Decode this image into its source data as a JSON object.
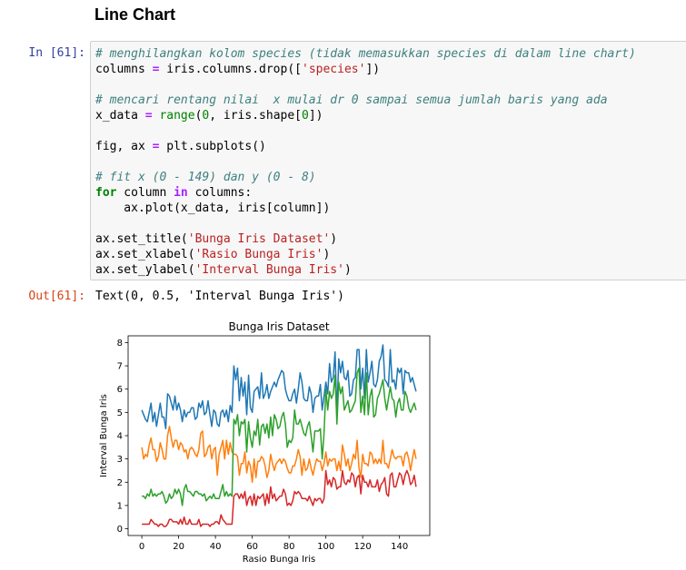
{
  "heading": "Line Chart",
  "cell": {
    "in_prompt": "In [61]:",
    "out_prompt": "Out[61]:",
    "code_lines": [
      [
        {
          "t": "cm",
          "v": "# menghilangkan kolom species (tidak memasukkan species di dalam line chart)"
        }
      ],
      [
        {
          "t": "",
          "v": "columns "
        },
        {
          "t": "op",
          "v": "="
        },
        {
          "t": "",
          "v": " iris.columns.drop(["
        },
        {
          "t": "st",
          "v": "'species'"
        },
        {
          "t": "",
          "v": "])"
        }
      ],
      [],
      [
        {
          "t": "cm",
          "v": "# mencari rentang nilai  x mulai dr 0 sampai semua jumlah baris yang ada"
        }
      ],
      [
        {
          "t": "",
          "v": "x_data "
        },
        {
          "t": "op",
          "v": "="
        },
        {
          "t": "",
          "v": " "
        },
        {
          "t": "nm",
          "v": "range"
        },
        {
          "t": "",
          "v": "("
        },
        {
          "t": "nm",
          "v": "0"
        },
        {
          "t": "",
          "v": ", iris.shape["
        },
        {
          "t": "nm",
          "v": "0"
        },
        {
          "t": "",
          "v": "])"
        }
      ],
      [],
      [
        {
          "t": "",
          "v": "fig, ax "
        },
        {
          "t": "op",
          "v": "="
        },
        {
          "t": "",
          "v": " plt.subplots()"
        }
      ],
      [],
      [
        {
          "t": "cm",
          "v": "# fit x (0 - 149) dan y (0 - 8)"
        }
      ],
      [
        {
          "t": "kw",
          "v": "for"
        },
        {
          "t": "",
          "v": " column "
        },
        {
          "t": "op",
          "v": "in"
        },
        {
          "t": "",
          "v": " columns:"
        }
      ],
      [
        {
          "t": "",
          "v": "    ax.plot(x_data, iris[column])"
        }
      ],
      [],
      [
        {
          "t": "",
          "v": "ax.set_title("
        },
        {
          "t": "st",
          "v": "'Bunga Iris Dataset'"
        },
        {
          "t": "",
          "v": ")"
        }
      ],
      [
        {
          "t": "",
          "v": "ax.set_xlabel("
        },
        {
          "t": "st",
          "v": "'Rasio Bunga Iris'"
        },
        {
          "t": "",
          "v": ")"
        }
      ],
      [
        {
          "t": "",
          "v": "ax.set_ylabel("
        },
        {
          "t": "st",
          "v": "'Interval Bunga Iris'"
        },
        {
          "t": "",
          "v": ")"
        }
      ]
    ],
    "output_text": "Text(0, 0.5, 'Interval Bunga Iris')"
  },
  "chart_data": {
    "type": "line",
    "title": "Bunga Iris Dataset",
    "xlabel": "Rasio Bunga Iris",
    "ylabel": "Interval Bunga Iris",
    "xlim": [
      -7.45,
      156.45
    ],
    "ylim": [
      -0.29,
      8.29
    ],
    "xticks": [
      0,
      20,
      40,
      60,
      80,
      100,
      120,
      140
    ],
    "yticks": [
      0,
      1,
      2,
      3,
      4,
      5,
      6,
      7,
      8
    ],
    "grid": false,
    "series": [
      {
        "color": "#1f77b4",
        "values": [
          5.1,
          4.9,
          4.7,
          4.6,
          5.0,
          5.4,
          4.6,
          5.0,
          4.4,
          4.9,
          5.4,
          4.8,
          4.8,
          4.3,
          5.8,
          5.7,
          5.4,
          5.1,
          5.7,
          5.1,
          5.4,
          5.1,
          4.6,
          5.1,
          4.8,
          5.0,
          5.0,
          5.2,
          5.2,
          4.7,
          4.8,
          5.4,
          5.2,
          5.5,
          4.9,
          5.0,
          5.5,
          4.9,
          4.4,
          5.1,
          5.0,
          4.5,
          4.4,
          5.0,
          5.1,
          4.8,
          5.1,
          4.6,
          5.3,
          5.0,
          7.0,
          6.4,
          6.9,
          5.5,
          6.5,
          5.7,
          6.3,
          4.9,
          6.6,
          5.2,
          5.0,
          5.9,
          6.0,
          6.1,
          5.6,
          6.7,
          5.6,
          5.8,
          6.2,
          5.6,
          5.9,
          6.1,
          6.3,
          6.1,
          6.4,
          6.6,
          6.8,
          6.7,
          6.0,
          5.7,
          5.5,
          5.5,
          5.8,
          6.0,
          5.4,
          6.0,
          6.7,
          6.3,
          5.6,
          5.5,
          5.5,
          6.1,
          5.8,
          5.0,
          5.6,
          5.7,
          5.7,
          6.2,
          5.1,
          5.7,
          6.3,
          5.8,
          7.1,
          6.3,
          6.5,
          7.6,
          4.9,
          7.3,
          6.7,
          7.2,
          6.5,
          6.4,
          6.8,
          5.7,
          5.8,
          6.4,
          6.5,
          7.7,
          7.7,
          6.0,
          6.9,
          5.6,
          7.7,
          6.3,
          6.7,
          7.2,
          6.2,
          6.1,
          6.4,
          7.2,
          7.4,
          7.9,
          6.4,
          6.3,
          6.1,
          7.7,
          6.3,
          6.4,
          6.0,
          6.9,
          6.7,
          6.9,
          5.8,
          6.8,
          6.7,
          6.7,
          6.3,
          6.5,
          6.2,
          5.9
        ]
      },
      {
        "color": "#ff7f0e",
        "values": [
          3.5,
          3.0,
          3.2,
          3.1,
          3.6,
          3.9,
          3.4,
          3.4,
          2.9,
          3.1,
          3.7,
          3.4,
          3.0,
          3.0,
          4.0,
          4.4,
          3.9,
          3.5,
          3.8,
          3.8,
          3.4,
          3.7,
          3.6,
          3.3,
          3.4,
          3.0,
          3.4,
          3.5,
          3.4,
          3.2,
          3.1,
          3.4,
          4.1,
          4.2,
          3.1,
          3.2,
          3.5,
          3.6,
          3.0,
          3.4,
          3.5,
          2.3,
          3.2,
          3.5,
          3.8,
          3.0,
          3.8,
          3.2,
          3.7,
          3.3,
          3.2,
          3.2,
          3.1,
          2.3,
          2.8,
          2.8,
          3.3,
          2.4,
          2.9,
          2.7,
          2.0,
          3.0,
          2.2,
          2.9,
          2.9,
          3.1,
          3.0,
          2.7,
          2.2,
          2.5,
          3.2,
          2.8,
          2.5,
          2.8,
          2.9,
          3.0,
          2.8,
          3.0,
          2.9,
          2.6,
          2.4,
          2.4,
          2.7,
          2.7,
          3.0,
          3.4,
          3.1,
          2.3,
          3.0,
          2.5,
          2.6,
          3.0,
          2.6,
          2.3,
          2.7,
          3.0,
          2.9,
          2.9,
          2.5,
          2.8,
          3.3,
          2.7,
          3.0,
          2.9,
          3.0,
          3.0,
          2.5,
          2.9,
          2.5,
          3.6,
          3.2,
          2.7,
          3.0,
          2.5,
          2.8,
          3.2,
          3.0,
          3.8,
          2.6,
          2.2,
          3.2,
          2.8,
          2.8,
          2.7,
          3.3,
          3.2,
          2.8,
          3.0,
          2.8,
          3.0,
          2.8,
          3.8,
          2.8,
          2.8,
          2.6,
          3.0,
          3.4,
          3.1,
          3.0,
          3.1,
          3.1,
          3.1,
          2.7,
          3.2,
          3.3,
          3.0,
          2.5,
          3.0,
          3.4,
          3.0
        ]
      },
      {
        "color": "#2ca02c",
        "values": [
          1.4,
          1.4,
          1.3,
          1.5,
          1.4,
          1.7,
          1.4,
          1.5,
          1.4,
          1.5,
          1.5,
          1.6,
          1.4,
          1.1,
          1.2,
          1.5,
          1.3,
          1.4,
          1.7,
          1.5,
          1.7,
          1.5,
          1.0,
          1.7,
          1.9,
          1.6,
          1.6,
          1.5,
          1.4,
          1.6,
          1.6,
          1.5,
          1.5,
          1.4,
          1.5,
          1.2,
          1.3,
          1.4,
          1.3,
          1.5,
          1.3,
          1.3,
          1.3,
          1.6,
          1.9,
          1.4,
          1.6,
          1.4,
          1.5,
          1.4,
          4.7,
          4.5,
          4.9,
          4.0,
          4.6,
          4.5,
          4.7,
          3.3,
          4.6,
          3.9,
          3.5,
          4.2,
          4.0,
          4.7,
          3.6,
          4.4,
          4.5,
          4.1,
          4.5,
          3.9,
          4.8,
          4.0,
          4.9,
          4.7,
          4.3,
          4.4,
          4.8,
          5.0,
          4.5,
          3.5,
          3.8,
          3.7,
          3.9,
          5.1,
          4.5,
          4.5,
          4.7,
          4.4,
          4.1,
          4.0,
          4.4,
          4.6,
          4.0,
          3.3,
          4.2,
          4.2,
          4.2,
          4.3,
          3.0,
          4.1,
          6.0,
          5.1,
          5.9,
          5.6,
          5.8,
          6.6,
          4.5,
          6.3,
          5.8,
          6.1,
          5.1,
          5.3,
          5.5,
          5.0,
          5.1,
          5.3,
          5.5,
          6.7,
          6.9,
          5.0,
          5.7,
          4.9,
          6.7,
          4.9,
          5.7,
          6.0,
          4.8,
          4.9,
          5.6,
          5.8,
          6.1,
          6.4,
          5.6,
          5.1,
          5.6,
          6.1,
          5.6,
          5.5,
          4.8,
          5.4,
          5.6,
          5.1,
          5.1,
          5.9,
          5.7,
          5.2,
          5.0,
          5.2,
          5.4,
          5.1
        ]
      },
      {
        "color": "#d62728",
        "values": [
          0.2,
          0.2,
          0.2,
          0.2,
          0.2,
          0.4,
          0.3,
          0.2,
          0.2,
          0.1,
          0.2,
          0.2,
          0.1,
          0.1,
          0.2,
          0.4,
          0.4,
          0.3,
          0.3,
          0.3,
          0.2,
          0.4,
          0.2,
          0.5,
          0.2,
          0.2,
          0.4,
          0.2,
          0.2,
          0.2,
          0.2,
          0.4,
          0.1,
          0.2,
          0.2,
          0.2,
          0.2,
          0.1,
          0.2,
          0.2,
          0.3,
          0.3,
          0.2,
          0.6,
          0.4,
          0.3,
          0.2,
          0.2,
          0.2,
          0.2,
          1.4,
          1.5,
          1.5,
          1.3,
          1.5,
          1.3,
          1.6,
          1.0,
          1.3,
          1.4,
          1.0,
          1.5,
          1.0,
          1.4,
          1.3,
          1.4,
          1.5,
          1.0,
          1.5,
          1.1,
          1.8,
          1.3,
          1.5,
          1.2,
          1.3,
          1.4,
          1.4,
          1.7,
          1.5,
          1.0,
          1.1,
          1.0,
          1.2,
          1.6,
          1.5,
          1.6,
          1.5,
          1.3,
          1.3,
          1.3,
          1.2,
          1.4,
          1.2,
          1.0,
          1.3,
          1.2,
          1.3,
          1.3,
          1.1,
          1.3,
          2.5,
          1.9,
          2.1,
          1.8,
          2.2,
          2.1,
          1.7,
          1.8,
          1.8,
          2.5,
          2.0,
          1.9,
          2.1,
          2.0,
          2.4,
          2.3,
          1.8,
          2.2,
          2.3,
          1.5,
          2.3,
          2.0,
          2.0,
          1.8,
          2.1,
          1.8,
          1.8,
          1.8,
          2.1,
          1.6,
          1.9,
          2.0,
          2.2,
          1.5,
          1.4,
          2.3,
          2.4,
          1.8,
          1.8,
          2.1,
          2.4,
          2.3,
          1.9,
          2.3,
          2.5,
          2.3,
          1.9,
          2.0,
          2.3,
          1.8
        ]
      }
    ]
  }
}
